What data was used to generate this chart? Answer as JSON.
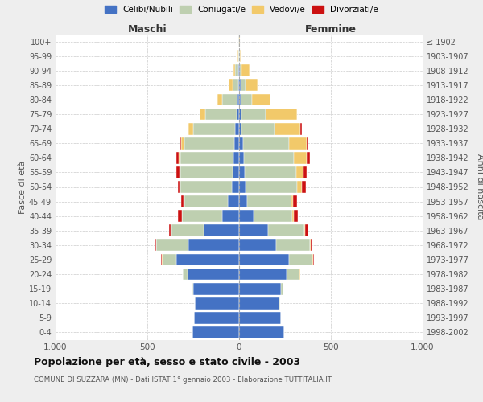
{
  "age_groups": [
    "0-4",
    "5-9",
    "10-14",
    "15-19",
    "20-24",
    "25-29",
    "30-34",
    "35-39",
    "40-44",
    "45-49",
    "50-54",
    "55-59",
    "60-64",
    "65-69",
    "70-74",
    "75-79",
    "80-84",
    "85-89",
    "90-94",
    "95-99",
    "100+"
  ],
  "birth_years": [
    "1998-2002",
    "1993-1997",
    "1988-1992",
    "1983-1987",
    "1978-1982",
    "1973-1977",
    "1968-1972",
    "1963-1967",
    "1958-1962",
    "1953-1957",
    "1948-1952",
    "1943-1947",
    "1938-1942",
    "1933-1937",
    "1928-1932",
    "1923-1927",
    "1918-1922",
    "1913-1917",
    "1908-1912",
    "1903-1907",
    "≤ 1902"
  ],
  "male": {
    "celibi": [
      255,
      245,
      240,
      250,
      280,
      340,
      275,
      195,
      90,
      60,
      40,
      35,
      30,
      25,
      20,
      15,
      10,
      5,
      5,
      2,
      2
    ],
    "coniugati": [
      0,
      0,
      2,
      5,
      25,
      75,
      175,
      175,
      220,
      240,
      280,
      285,
      290,
      275,
      230,
      170,
      80,
      30,
      15,
      3,
      2
    ],
    "vedovi": [
      0,
      0,
      0,
      0,
      2,
      5,
      2,
      2,
      2,
      2,
      3,
      5,
      10,
      15,
      25,
      30,
      30,
      20,
      10,
      2,
      0
    ],
    "divorziati": [
      0,
      0,
      0,
      0,
      2,
      5,
      5,
      10,
      20,
      15,
      10,
      15,
      10,
      5,
      5,
      0,
      0,
      0,
      0,
      0,
      0
    ]
  },
  "female": {
    "nubili": [
      245,
      230,
      220,
      230,
      260,
      270,
      200,
      160,
      80,
      45,
      35,
      30,
      25,
      20,
      15,
      15,
      10,
      8,
      5,
      2,
      2
    ],
    "coniugate": [
      0,
      0,
      2,
      10,
      70,
      130,
      185,
      195,
      210,
      240,
      280,
      280,
      275,
      250,
      180,
      130,
      60,
      25,
      10,
      2,
      0
    ],
    "vedove": [
      0,
      0,
      0,
      0,
      3,
      5,
      5,
      5,
      8,
      10,
      25,
      40,
      70,
      100,
      140,
      170,
      100,
      70,
      40,
      5,
      2
    ],
    "divorziate": [
      0,
      0,
      0,
      0,
      2,
      5,
      10,
      15,
      20,
      20,
      25,
      20,
      15,
      5,
      5,
      2,
      2,
      0,
      0,
      0,
      0
    ]
  },
  "colors": {
    "celibi": "#4472C4",
    "coniugati": "#BECFB0",
    "vedovi": "#F2C96A",
    "divorziati": "#CC1111"
  },
  "xlim": 1000,
  "title": "Popolazione per età, sesso e stato civile - 2003",
  "subtitle": "COMUNE DI SUZZARA (MN) - Dati ISTAT 1° gennaio 2003 - Elaborazione TUTTITALIA.IT",
  "ylabel_left": "Fasce di età",
  "ylabel_right": "Anni di nascita",
  "xlabel_left": "Maschi",
  "xlabel_right": "Femmine",
  "legend_labels": [
    "Celibi/Nubili",
    "Coniugati/e",
    "Vedovi/e",
    "Divorziati/e"
  ],
  "bg_color": "#eeeeee",
  "plot_bg": "#ffffff"
}
